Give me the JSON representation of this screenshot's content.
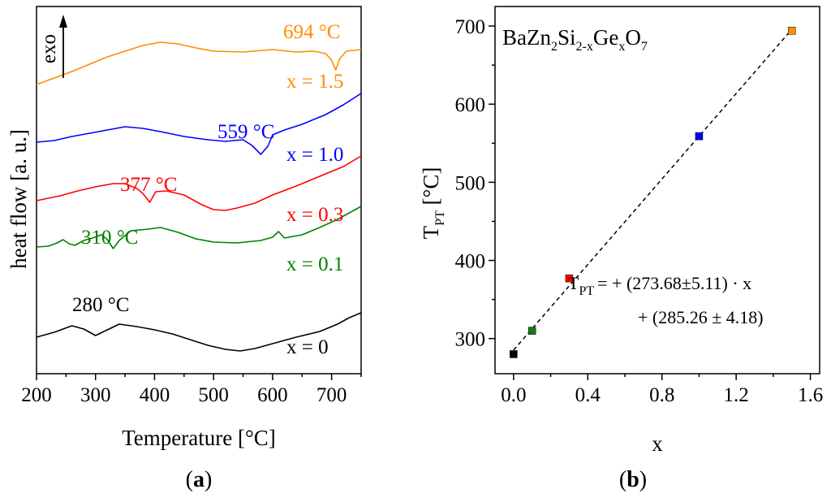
{
  "chart_data": [
    {
      "panel": "a",
      "type": "line",
      "title": "",
      "xlabel": "Temperature [°C]",
      "ylabel": "heat flow [a. u.]",
      "xlim": [
        200,
        750
      ],
      "xticks": [
        200,
        300,
        400,
        500,
        600,
        700
      ],
      "yticks": [],
      "grid": false,
      "exo_label": "exo",
      "panel_label": "a",
      "series": [
        {
          "name": "x = 0",
          "color": "#000000",
          "temp_label": "280 °C",
          "points": [
            [
              200,
              -0.35
            ],
            [
              230,
              -0.05
            ],
            [
              260,
              0.35
            ],
            [
              280,
              0.15
            ],
            [
              300,
              -0.25
            ],
            [
              320,
              0.1
            ],
            [
              340,
              0.45
            ],
            [
              370,
              0.3
            ],
            [
              400,
              0.1
            ],
            [
              430,
              -0.15
            ],
            [
              460,
              -0.5
            ],
            [
              490,
              -0.85
            ],
            [
              520,
              -1.1
            ],
            [
              545,
              -1.2
            ],
            [
              570,
              -1.05
            ],
            [
              600,
              -0.75
            ],
            [
              640,
              -0.35
            ],
            [
              680,
              0.0
            ],
            [
              710,
              0.45
            ],
            [
              730,
              0.85
            ],
            [
              750,
              1.15
            ]
          ]
        },
        {
          "name": "x = 0.1",
          "color": "#008000",
          "temp_label": "310 °C",
          "points": [
            [
              200,
              -0.2
            ],
            [
              220,
              -0.15
            ],
            [
              235,
              0.05
            ],
            [
              245,
              0.25
            ],
            [
              255,
              0.0
            ],
            [
              265,
              -0.1
            ],
            [
              280,
              0.2
            ],
            [
              295,
              0.35
            ],
            [
              310,
              0.55
            ],
            [
              320,
              0.25
            ],
            [
              330,
              -0.3
            ],
            [
              340,
              0.2
            ],
            [
              360,
              0.8
            ],
            [
              390,
              0.9
            ],
            [
              410,
              1.0
            ],
            [
              440,
              0.7
            ],
            [
              470,
              0.3
            ],
            [
              500,
              0.1
            ],
            [
              540,
              0.05
            ],
            [
              580,
              0.2
            ],
            [
              600,
              0.4
            ],
            [
              610,
              0.75
            ],
            [
              620,
              0.35
            ],
            [
              650,
              0.55
            ],
            [
              680,
              1.0
            ],
            [
              710,
              1.5
            ],
            [
              730,
              1.9
            ],
            [
              750,
              2.3
            ]
          ]
        },
        {
          "name": "x = 0.3",
          "color": "#ff0000",
          "temp_label": "377 °C",
          "points": [
            [
              200,
              0.0
            ],
            [
              240,
              0.3
            ],
            [
              270,
              0.6
            ],
            [
              300,
              0.85
            ],
            [
              330,
              1.05
            ],
            [
              350,
              1.05
            ],
            [
              370,
              0.75
            ],
            [
              380,
              0.45
            ],
            [
              392,
              -0.1
            ],
            [
              402,
              0.55
            ],
            [
              420,
              0.6
            ],
            [
              450,
              0.35
            ],
            [
              480,
              -0.25
            ],
            [
              500,
              -0.55
            ],
            [
              520,
              -0.6
            ],
            [
              540,
              -0.45
            ],
            [
              570,
              -0.15
            ],
            [
              600,
              0.35
            ],
            [
              640,
              0.9
            ],
            [
              680,
              1.5
            ],
            [
              720,
              2.1
            ],
            [
              750,
              2.75
            ]
          ]
        },
        {
          "name": "x = 1.0",
          "color": "#0000ff",
          "temp_label": "559 °C",
          "points": [
            [
              200,
              0.0
            ],
            [
              230,
              0.1
            ],
            [
              260,
              0.35
            ],
            [
              290,
              0.55
            ],
            [
              320,
              0.75
            ],
            [
              350,
              0.95
            ],
            [
              380,
              0.85
            ],
            [
              410,
              0.65
            ],
            [
              450,
              0.35
            ],
            [
              490,
              0.15
            ],
            [
              520,
              0.05
            ],
            [
              550,
              0.15
            ],
            [
              565,
              -0.2
            ],
            [
              580,
              -0.75
            ],
            [
              592,
              -0.25
            ],
            [
              600,
              0.45
            ],
            [
              620,
              0.75
            ],
            [
              650,
              1.1
            ],
            [
              690,
              1.7
            ],
            [
              720,
              2.3
            ],
            [
              750,
              3.0
            ]
          ]
        },
        {
          "name": "x = 1.5",
          "color": "#ff8c00",
          "temp_label": "694 °C",
          "points": [
            [
              200,
              -0.3
            ],
            [
              230,
              0.1
            ],
            [
              260,
              0.5
            ],
            [
              290,
              0.95
            ],
            [
              320,
              1.4
            ],
            [
              350,
              1.75
            ],
            [
              380,
              2.1
            ],
            [
              410,
              2.3
            ],
            [
              440,
              2.2
            ],
            [
              470,
              1.95
            ],
            [
              500,
              1.75
            ],
            [
              550,
              1.7
            ],
            [
              600,
              1.85
            ],
            [
              640,
              1.7
            ],
            [
              670,
              1.75
            ],
            [
              690,
              1.6
            ],
            [
              700,
              1.2
            ],
            [
              707,
              0.6
            ],
            [
              714,
              1.3
            ],
            [
              725,
              1.75
            ],
            [
              750,
              1.85
            ]
          ]
        }
      ]
    },
    {
      "panel": "b",
      "type": "scatter",
      "title": "BaZn2Si2-xGexO7",
      "xlabel": "x",
      "ylabel": "T_PT [°C]",
      "xlim": [
        -0.1,
        1.65
      ],
      "ylim": [
        255,
        725
      ],
      "xticks": [
        0.0,
        0.4,
        0.8,
        1.2,
        1.6
      ],
      "yticks": [
        300,
        400,
        500,
        600,
        700
      ],
      "grid": false,
      "panel_label": "b",
      "points": [
        {
          "x": 0.0,
          "y": 280,
          "color": "#000000"
        },
        {
          "x": 0.1,
          "y": 310,
          "color": "#1a7a1a"
        },
        {
          "x": 0.3,
          "y": 377,
          "color": "#ff0000"
        },
        {
          "x": 1.0,
          "y": 559,
          "color": "#0000ff"
        },
        {
          "x": 1.5,
          "y": 694,
          "color": "#ff8c00"
        }
      ],
      "fit": {
        "slope": 273.68,
        "intercept": 285.26,
        "x_from": 0.0,
        "x_to": 1.5,
        "style": "dashed"
      },
      "fit_label_line1": "= + (273.68±5.11) · x",
      "fit_label_line2": "+ (285.26 ± 4.18)"
    }
  ]
}
